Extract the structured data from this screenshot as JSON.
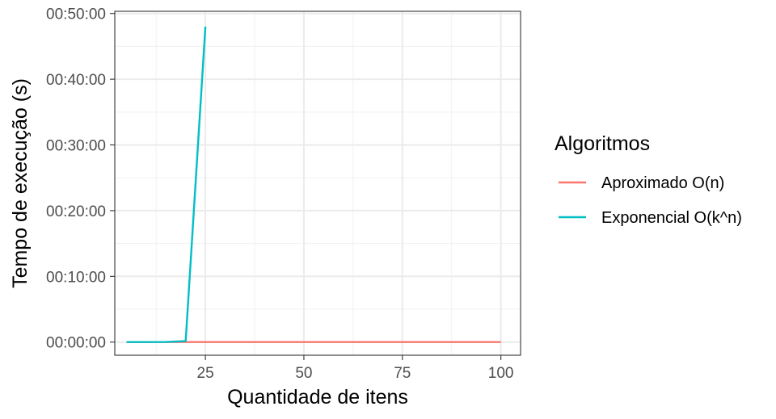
{
  "chart_data": {
    "type": "line",
    "xlabel": "Quantidade de itens",
    "ylabel": "Tempo de execução (s)",
    "xlim": [
      2,
      105
    ],
    "ylim": [
      -120,
      3020
    ],
    "x_ticks": [
      25,
      50,
      75,
      100
    ],
    "x_tick_labels": [
      "25",
      "50",
      "75",
      "100"
    ],
    "y_ticks": [
      0,
      600,
      1200,
      1800,
      2400,
      3000
    ],
    "y_tick_labels": [
      "00:00:00",
      "00:10:00",
      "00:20:00",
      "00:30:00",
      "00:40:00",
      "00:50:00"
    ],
    "grid": true,
    "legend": {
      "title": "Algoritmos",
      "position": "right"
    },
    "series": [
      {
        "name": "Aproximado O(n)",
        "color": "#F8766D",
        "x": [
          5,
          10,
          15,
          20,
          25,
          30,
          35,
          40,
          45,
          50,
          55,
          60,
          65,
          70,
          75,
          80,
          85,
          90,
          95,
          100
        ],
        "y": [
          0,
          0,
          0,
          0,
          0,
          0,
          0,
          0,
          0,
          0,
          0,
          0,
          0,
          0,
          0,
          0,
          0,
          0,
          0,
          0
        ]
      },
      {
        "name": "Exponencial O(k^n)",
        "color": "#00BFC4",
        "x": [
          5,
          10,
          15,
          20,
          25
        ],
        "y": [
          0,
          0,
          1,
          10,
          2880
        ]
      }
    ]
  }
}
